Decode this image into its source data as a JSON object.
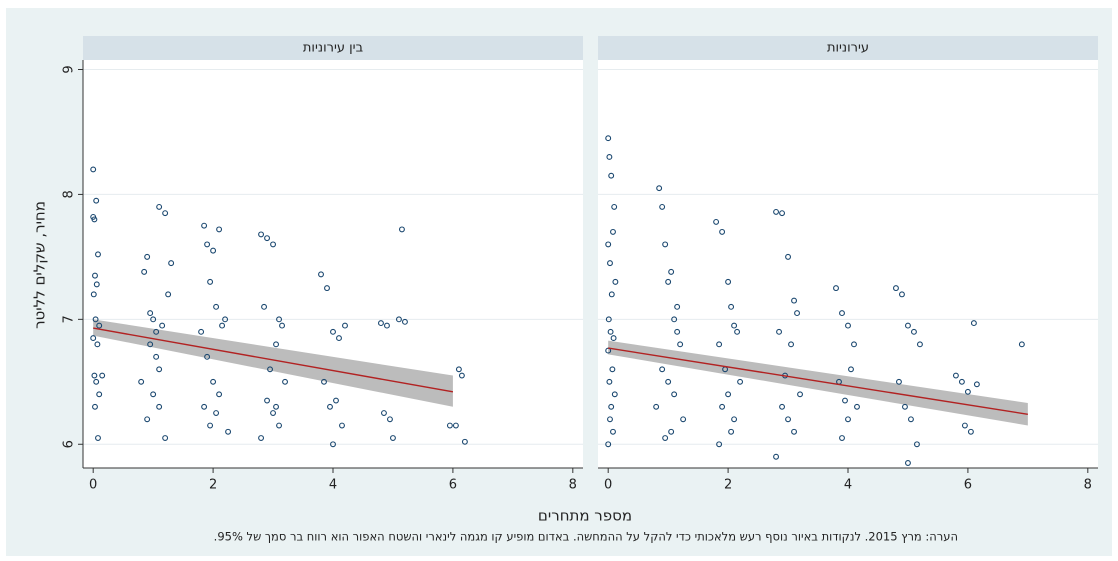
{
  "ylabel": "מחיר, שקלים לליטר",
  "xlabel": "מספר מתחרים",
  "note": "הערה: מרץ 2015. לנקודות באיור נוסף רעש מלאכותי כדי להקל על ההמחשה. באדום מופיע קו מגמה לינארי והשטח האפור הוא רווח בר סמך של 95%.",
  "chart_data": [
    {
      "type": "scatter",
      "title": "בין עירוניות",
      "color": "#1a476f",
      "x": [
        0.0,
        0.05,
        0.02,
        0.08,
        0.03,
        0.06,
        0.01,
        0.04,
        0.1,
        0.0,
        0.07,
        0.02,
        0.05,
        0.1,
        0.03,
        0.08,
        0.0,
        0.15,
        0.85,
        0.9,
        1.0,
        1.1,
        1.2,
        1.15,
        0.95,
        1.05,
        1.25,
        0.8,
        1.0,
        1.1,
        0.9,
        1.2,
        1.05,
        0.95,
        1.1,
        1.3,
        1.85,
        1.9,
        2.0,
        2.1,
        1.95,
        2.05,
        2.15,
        1.8,
        2.2,
        1.9,
        2.0,
        2.1,
        2.05,
        1.95,
        2.25,
        1.85,
        2.8,
        2.9,
        3.0,
        3.1,
        3.15,
        2.85,
        3.05,
        2.95,
        3.2,
        2.9,
        3.0,
        3.1,
        2.8,
        3.05,
        3.8,
        3.9,
        4.0,
        4.1,
        4.2,
        3.85,
        4.05,
        3.95,
        4.15,
        4.0,
        4.8,
        4.9,
        5.1,
        5.2,
        5.15,
        4.85,
        4.95,
        5.0,
        5.95,
        6.1,
        6.15,
        6.05,
        6.2
      ],
      "y": [
        8.2,
        7.95,
        7.8,
        7.52,
        7.35,
        7.28,
        7.2,
        7.0,
        6.95,
        6.85,
        6.8,
        6.55,
        6.5,
        6.4,
        6.3,
        6.05,
        7.82,
        6.55,
        7.38,
        7.5,
        7.0,
        7.9,
        7.85,
        6.95,
        6.8,
        6.7,
        7.2,
        6.5,
        6.4,
        6.3,
        6.2,
        6.05,
        6.9,
        7.05,
        6.6,
        7.45,
        7.75,
        7.6,
        7.55,
        7.72,
        7.3,
        7.1,
        6.95,
        6.9,
        7.0,
        6.7,
        6.5,
        6.4,
        6.25,
        6.15,
        6.1,
        6.3,
        7.68,
        7.65,
        7.6,
        7.0,
        6.95,
        7.1,
        6.8,
        6.6,
        6.5,
        6.35,
        6.25,
        6.15,
        6.05,
        6.3,
        7.36,
        7.25,
        6.9,
        6.85,
        6.95,
        6.5,
        6.35,
        6.3,
        6.15,
        6.0,
        6.97,
        6.95,
        7.0,
        6.98,
        7.72,
        6.25,
        6.2,
        6.05,
        6.15,
        6.6,
        6.55,
        6.15,
        6.02
      ],
      "fit": {
        "x": [
          0,
          6
        ],
        "y": [
          6.93,
          6.42
        ],
        "lower": [
          6.87,
          6.3
        ],
        "upper": [
          7.0,
          6.55
        ],
        "color": "#b22222",
        "band_color": "#a6a6a6"
      },
      "xlim": [
        -0.17,
        8.17
      ],
      "xticks": [
        0,
        2,
        4,
        6,
        8
      ],
      "ylim": [
        5.81,
        9.06
      ],
      "yticks": [
        6,
        7,
        8,
        9
      ],
      "grid": true
    },
    {
      "type": "scatter",
      "title": "עירוניות",
      "color": "#1a476f",
      "x": [
        0.0,
        0.02,
        0.05,
        0.1,
        0.08,
        0.0,
        0.03,
        0.12,
        0.06,
        0.01,
        0.04,
        0.09,
        0.0,
        0.07,
        0.02,
        0.11,
        0.05,
        0.03,
        0.08,
        0.0,
        0.85,
        0.9,
        0.95,
        1.0,
        1.05,
        1.1,
        1.15,
        1.2,
        0.9,
        1.0,
        1.1,
        0.8,
        1.25,
        1.05,
        0.95,
        1.15,
        1.8,
        1.9,
        2.0,
        2.05,
        2.1,
        2.15,
        1.85,
        1.95,
        2.2,
        2.0,
        1.9,
        2.1,
        2.05,
        1.85,
        2.8,
        2.9,
        3.0,
        3.1,
        3.15,
        2.85,
        3.05,
        2.95,
        3.2,
        2.9,
        3.0,
        3.1,
        2.8,
        3.8,
        3.9,
        4.0,
        4.1,
        4.05,
        3.85,
        3.95,
        4.15,
        4.0,
        3.9,
        4.8,
        4.9,
        5.0,
        5.1,
        5.2,
        4.85,
        4.95,
        5.05,
        5.15,
        5.0,
        5.8,
        5.9,
        6.0,
        6.1,
        6.15,
        5.95,
        6.05,
        6.9
      ],
      "y": [
        8.45,
        8.3,
        8.15,
        7.9,
        7.7,
        7.6,
        7.45,
        7.3,
        7.2,
        7.0,
        6.9,
        6.85,
        6.75,
        6.6,
        6.5,
        6.4,
        6.3,
        6.2,
        6.1,
        6.0,
        8.05,
        7.9,
        7.6,
        7.3,
        7.38,
        7.0,
        6.9,
        6.8,
        6.6,
        6.5,
        6.4,
        6.3,
        6.2,
        6.1,
        6.05,
        7.1,
        7.78,
        7.7,
        7.3,
        7.1,
        6.95,
        6.9,
        6.8,
        6.6,
        6.5,
        6.4,
        6.3,
        6.2,
        6.1,
        6.0,
        7.86,
        7.85,
        7.5,
        7.15,
        7.05,
        6.9,
        6.8,
        6.55,
        6.4,
        6.3,
        6.2,
        6.1,
        5.9,
        7.25,
        7.05,
        6.95,
        6.8,
        6.6,
        6.5,
        6.35,
        6.3,
        6.2,
        6.05,
        7.25,
        7.2,
        6.95,
        6.9,
        6.8,
        6.5,
        6.3,
        6.2,
        6.0,
        5.85,
        6.55,
        6.5,
        6.42,
        6.97,
        6.48,
        6.15,
        6.1,
        6.8
      ],
      "fit": {
        "x": [
          0,
          7
        ],
        "y": [
          6.77,
          6.24
        ],
        "lower": [
          6.72,
          6.15
        ],
        "upper": [
          6.83,
          6.33
        ],
        "color": "#b22222",
        "band_color": "#a6a6a6"
      },
      "xlim": [
        -0.17,
        8.17
      ],
      "xticks": [
        0,
        2,
        4,
        6,
        8
      ],
      "ylim": [
        5.81,
        9.06
      ],
      "yticks": [
        6,
        7,
        8,
        9
      ],
      "grid": true
    }
  ]
}
